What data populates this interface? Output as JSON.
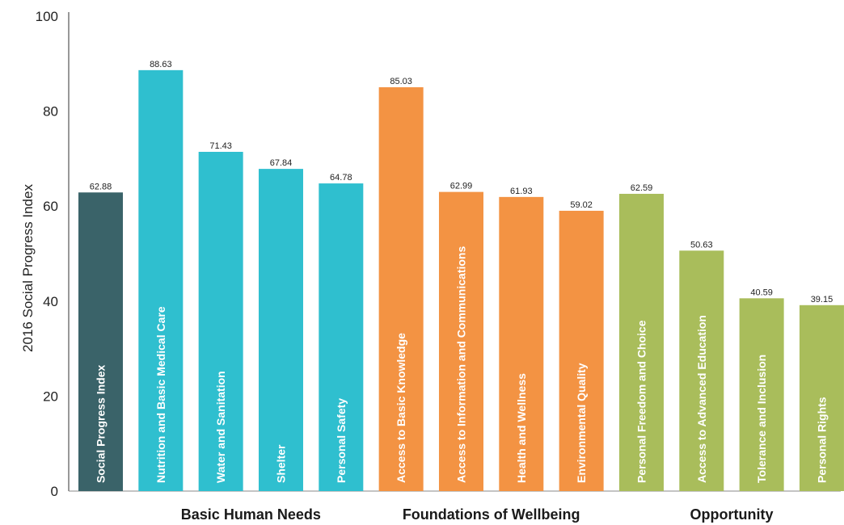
{
  "chart_data": {
    "type": "bar",
    "ylabel": "2016 Social Progress Index",
    "ylim": [
      0,
      100
    ],
    "yticks": [
      0,
      20,
      40,
      60,
      80,
      100
    ],
    "grid": false,
    "categories": [
      "Social Progress Index",
      "Nutrition and Basic Medical Care",
      "Water and Sanitation",
      "Shelter",
      "Personal Safety",
      "Access to Basic Knowledge",
      "Access to Information and Communications",
      "Health and Wellness",
      "Environmental Quality",
      "Personal Freedom and Choice",
      "Access to Advanced Education",
      "Tolerance and Inclusion",
      "Personal Rights"
    ],
    "values": [
      62.88,
      88.63,
      71.43,
      67.84,
      64.78,
      85.03,
      62.99,
      61.93,
      59.02,
      62.59,
      50.63,
      40.59,
      39.15
    ],
    "value_labels": [
      "62.88",
      "88.63",
      "71.43",
      "67.84",
      "64.78",
      "85.03",
      "62.99",
      "61.93",
      "59.02",
      "62.59",
      "50.63",
      "40.59",
      "39.15"
    ],
    "bar_colors": [
      "#3a6369",
      "#2fbfcf",
      "#2fbfcf",
      "#2fbfcf",
      "#2fbfcf",
      "#f39343",
      "#f39343",
      "#f39343",
      "#f39343",
      "#a9bd5b",
      "#a9bd5b",
      "#a9bd5b",
      "#a9bd5b"
    ],
    "groups": [
      {
        "name": "Basic Human Needs",
        "start": 1,
        "end": 4
      },
      {
        "name": "Foundations of Wellbeing",
        "start": 5,
        "end": 8
      },
      {
        "name": "Opportunity",
        "start": 9,
        "end": 12
      }
    ]
  }
}
